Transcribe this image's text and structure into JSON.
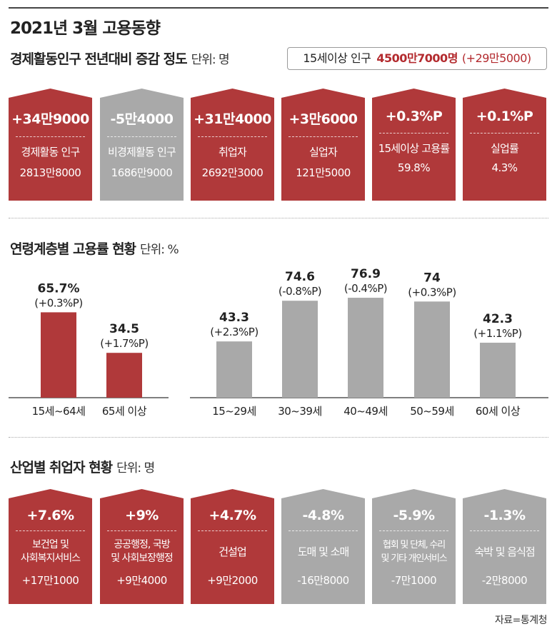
{
  "title": "2021년 3월 고용동향",
  "source": "자료=통계청",
  "colors": {
    "red": "#b0393a",
    "gray": "#a9a9a9",
    "accent": "#b32a2e"
  },
  "section1": {
    "title": "경제활동인구 전년대비 증감 정도",
    "unit": "단위: 명",
    "population": {
      "label": "15세이상 인구",
      "value": "4500만7000명",
      "change": "(+29만5000)"
    },
    "cards": [
      {
        "change": "+34만9000",
        "label": "경제활동 인구",
        "value": "2813만8000",
        "color": "red"
      },
      {
        "change": "-5만4000",
        "label": "비경제활동 인구",
        "value": "1686만9000",
        "color": "gray"
      },
      {
        "change": "+31만4000",
        "label": "취업자",
        "value": "2692만3000",
        "color": "red"
      },
      {
        "change": "+3만6000",
        "label": "실업자",
        "value": "121만5000",
        "color": "red"
      },
      {
        "change": "+0.3%P",
        "label": "15세이상 고용률",
        "value": "59.8%",
        "color": "red"
      },
      {
        "change": "+0.1%P",
        "label": "실업률",
        "value": "4.3%",
        "color": "red"
      }
    ]
  },
  "section2": {
    "title": "연령계층별 고용률 현황",
    "unit": "단위: %"
  },
  "chart_data": {
    "type": "bar",
    "title": "연령계층별 고용률 현황",
    "unit": "단위: %",
    "ylim": [
      0,
      80
    ],
    "groups": [
      {
        "categories": [
          "15세~64세",
          "65세 이상"
        ],
        "values": [
          65.7,
          34.5
        ],
        "value_labels": [
          "65.7%",
          "34.5"
        ],
        "changes": [
          "(+0.3%P)",
          "(+1.7%P)"
        ],
        "color": "#b0393a"
      },
      {
        "categories": [
          "15~29세",
          "30~39세",
          "40~49세",
          "50~59세",
          "60세 이상"
        ],
        "values": [
          43.3,
          74.6,
          76.9,
          74,
          42.3
        ],
        "value_labels": [
          "43.3",
          "74.6",
          "76.9",
          "74",
          "42.3"
        ],
        "changes": [
          "(+2.3%P)",
          "(-0.8%P)",
          "(-0.4%P)",
          "(+0.3%P)",
          "(+1.1%P)"
        ],
        "color": "#a9a9a9"
      }
    ]
  },
  "section3": {
    "title": "산업별 취업자 현황",
    "unit": "단위: 명",
    "cards": [
      {
        "change": "+7.6%",
        "label1": "보건업 및",
        "label2": "사회복지서비스",
        "value": "+17만1000",
        "color": "red"
      },
      {
        "change": "+9%",
        "label1": "공공행정, 국방",
        "label2": "및 사회보장행정",
        "value": "+9만4000",
        "color": "red"
      },
      {
        "change": "+4.7%",
        "label1": "건설업",
        "label2": "",
        "value": "+9만2000",
        "color": "red"
      },
      {
        "change": "-4.8%",
        "label1": "도매 및 소매",
        "label2": "",
        "value": "-16만8000",
        "color": "gray"
      },
      {
        "change": "-5.9%",
        "label1": "협회 및 단체, 수리",
        "label2": "및 기타 개인서비스",
        "value": "-7만1000",
        "color": "gray"
      },
      {
        "change": "-1.3%",
        "label1": "숙박 및 음식점",
        "label2": "",
        "value": "-2만8000",
        "color": "gray"
      }
    ]
  }
}
